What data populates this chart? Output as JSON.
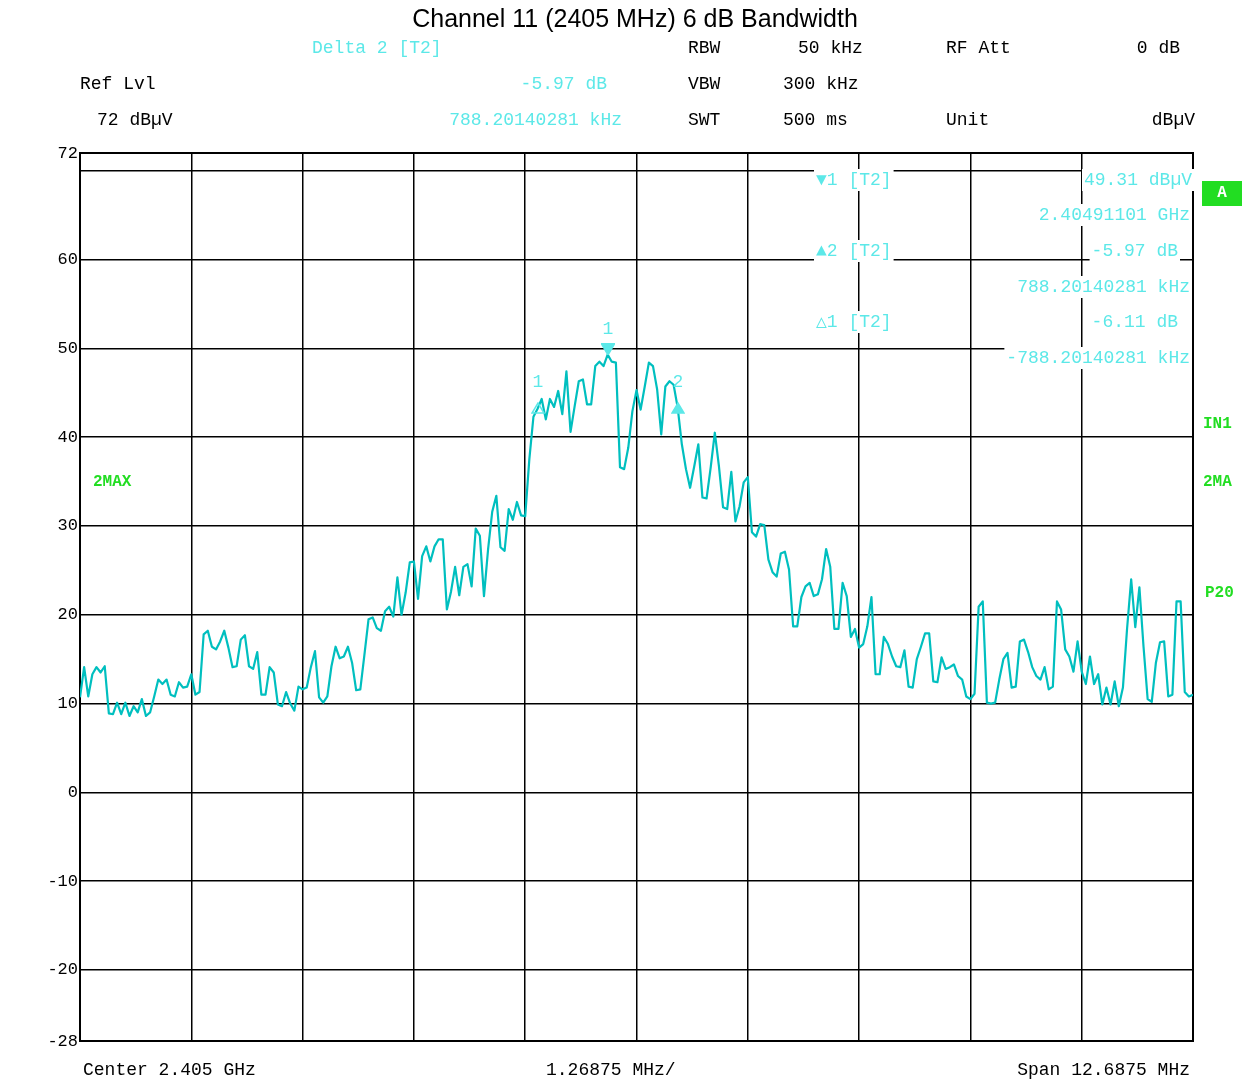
{
  "chart_data": {
    "type": "line",
    "title": "Channel 11 (2405 MHz) 6 dB Bandwidth",
    "color": "#00bfbf",
    "grid": true,
    "legend": false,
    "tick_labels": "y",
    "line_style": "solid",
    "ylim": [
      -28,
      72
    ],
    "yticks": [
      -28,
      -20,
      -10,
      0,
      10,
      20,
      30,
      40,
      50,
      60,
      {
        "value": 70,
        "label": null
      },
      72
    ],
    "categories": [
      null,
      null,
      null,
      null,
      null,
      null,
      null,
      null,
      null,
      null,
      null,
      null,
      null,
      null,
      null,
      null,
      null,
      null,
      null,
      null,
      null,
      null,
      null,
      null,
      null,
      null,
      null,
      null,
      null,
      null,
      null,
      null,
      null,
      null,
      null,
      null,
      null,
      null,
      null,
      null,
      null,
      null,
      null,
      null,
      null,
      null,
      null,
      null,
      null,
      null,
      null,
      null,
      null,
      null,
      null,
      null,
      null,
      null,
      null,
      null,
      null,
      null,
      null,
      null,
      null,
      null,
      null,
      null,
      null,
      null,
      null,
      null,
      null,
      null,
      null,
      null,
      null,
      null,
      null,
      null,
      null,
      null,
      null,
      null,
      null,
      null,
      null,
      null,
      null,
      null,
      null,
      null,
      null,
      null,
      null,
      null,
      null,
      null,
      null,
      null,
      null,
      null,
      null,
      null,
      null,
      null,
      null,
      null,
      null,
      null,
      null,
      null,
      null,
      null,
      null,
      null,
      null,
      null,
      null,
      null,
      null,
      null,
      null,
      null,
      null,
      null,
      null,
      null,
      null,
      null,
      null,
      null,
      null,
      null,
      null,
      null,
      null,
      null,
      null,
      null,
      null,
      null,
      null,
      null,
      null,
      null,
      null,
      null,
      null,
      null,
      null,
      null,
      null,
      null,
      null,
      null,
      null,
      null,
      null,
      null,
      null,
      null,
      null,
      null,
      null,
      null,
      null,
      null,
      null,
      null,
      null,
      null,
      null,
      null,
      null,
      null,
      null,
      null,
      null,
      null,
      null,
      null,
      null,
      null,
      null,
      null,
      null,
      null,
      null,
      null,
      null,
      null,
      null,
      null,
      null,
      null,
      null,
      null,
      null,
      null,
      null,
      null,
      null,
      null,
      null,
      null,
      null,
      null,
      null,
      null,
      null,
      null,
      null,
      null,
      null,
      null,
      null,
      null,
      null,
      null,
      null,
      null,
      null,
      null,
      null,
      null,
      null,
      null,
      null,
      null,
      null,
      null,
      null,
      null,
      null,
      null,
      null,
      null,
      null,
      null,
      null,
      null,
      null,
      null,
      null,
      null,
      null,
      null,
      null,
      null,
      null,
      null,
      null,
      null,
      null,
      null,
      null,
      null,
      null,
      null,
      null,
      null,
      null,
      null,
      null,
      null,
      null,
      null,
      null,
      null,
      null
    ],
    "values": [
      10.7,
      14.1,
      10.8,
      13.3,
      14.1,
      13.5,
      14.2,
      8.9,
      8.8,
      10.1,
      8.8,
      10.1,
      8.6,
      9.7,
      9,
      10.5,
      8.6,
      9,
      10.8,
      12.7,
      12.2,
      12.7,
      11,
      10.8,
      12.4,
      11.8,
      11.9,
      13.3,
      11,
      11.3,
      17.8,
      18.2,
      16.4,
      16.1,
      17,
      18.2,
      16.3,
      14.1,
      14.2,
      17.2,
      17.7,
      14.2,
      13.9,
      15.8,
      11,
      11,
      14.1,
      13.5,
      9.9,
      9.7,
      11.3,
      10,
      9.2,
      11.9,
      11.6,
      11.8,
      14.1,
      15.9,
      10.7,
      10.1,
      10.8,
      14.2,
      16.4,
      15.1,
      15.3,
      16.4,
      14.6,
      11.5,
      11.6,
      15.5,
      19.5,
      19.7,
      18.5,
      18.2,
      20.4,
      20.9,
      19.8,
      24.2,
      20,
      22.5,
      25.9,
      26,
      21.8,
      26.6,
      27.7,
      26,
      27.7,
      28.5,
      28.5,
      20.6,
      22.6,
      25.4,
      22.2,
      25.4,
      25.7,
      23.2,
      29.7,
      28.9,
      22.1,
      27.4,
      31.6,
      33.4,
      27.6,
      27.2,
      31.9,
      30.7,
      32.7,
      31.2,
      31.1,
      37.5,
      42.3,
      43.2,
      44.3,
      42,
      44.3,
      43.4,
      45.2,
      42.6,
      47.4,
      40.6,
      43.5,
      46.3,
      46.5,
      43.7,
      43.7,
      48,
      48.5,
      48,
      49.3,
      48.5,
      48.4,
      36.6,
      36.4,
      38.8,
      42.9,
      45.3,
      43.1,
      45.7,
      48.4,
      48,
      45.4,
      40.3,
      45.7,
      46.3,
      45.9,
      43.3,
      39.2,
      36.4,
      34.3,
      36.7,
      39.2,
      33.2,
      33.1,
      36.6,
      40.5,
      36.7,
      32.1,
      31.9,
      36.1,
      30.5,
      32.2,
      34.9,
      35.5,
      29.3,
      28.8,
      30.2,
      30.1,
      26.2,
      24.8,
      24.3,
      26.9,
      27.1,
      25.1,
      18.7,
      18.7,
      22,
      23.2,
      23.6,
      22.1,
      22.3,
      24,
      27.4,
      25.4,
      18.4,
      18.4,
      23.6,
      22.1,
      17.5,
      18.4,
      16.3,
      16.7,
      18.7,
      22,
      13.3,
      13.3,
      17.5,
      16.7,
      15.3,
      14.2,
      14.1,
      16,
      11.9,
      11.8,
      15,
      16.4,
      17.9,
      17.9,
      12.5,
      12.4,
      15.2,
      13.9,
      14.1,
      14.4,
      13.1,
      12.7,
      10.8,
      10.5,
      11.1,
      20.9,
      21.5,
      10.1,
      10,
      10.1,
      12.7,
      15,
      15.7,
      11.8,
      11.9,
      17,
      17.2,
      15.8,
      14.1,
      13.1,
      12.7,
      14.1,
      11.6,
      11.9,
      21.5,
      20.6,
      16.1,
      15.3,
      13.6,
      17,
      13.6,
      12.2,
      15.3,
      12.2,
      13.3,
      9.9,
      11.8,
      9.9,
      12.5,
      9.7,
      11.8,
      18.4,
      24,
      18.6,
      23.1,
      16.4,
      10.5,
      10.2,
      14.6,
      16.9,
      17,
      10.8,
      11,
      21.5,
      21.5,
      11.3,
      10.8,
      11
    ],
    "annotations": [
      "Delta 2 [T2]",
      "-5.97 dB",
      "788.20140281 kHz",
      "Ref Lvl",
      "72 dBµV",
      "RBW",
      "50 kHz",
      "RF Att",
      "0 dB",
      "VBW",
      "300 kHz",
      "SWT",
      "500 ms",
      "Unit",
      "dBµV",
      "▼1 [T2]",
      "49.31 dBµV",
      "2.40491101 GHz",
      "▲2 [T2]",
      "-5.97 dB",
      "788.20140281 kHz",
      "△1 [T2]",
      "-6.11 dB",
      "-788.20140281 kHz",
      "A",
      "IN1",
      "2MA",
      "P20",
      "2MAX",
      "Center 2.405 GHz",
      "1.26875 MHz/",
      "Span 12.6875 MHz",
      "1",
      "1",
      "2"
    ]
  }
}
